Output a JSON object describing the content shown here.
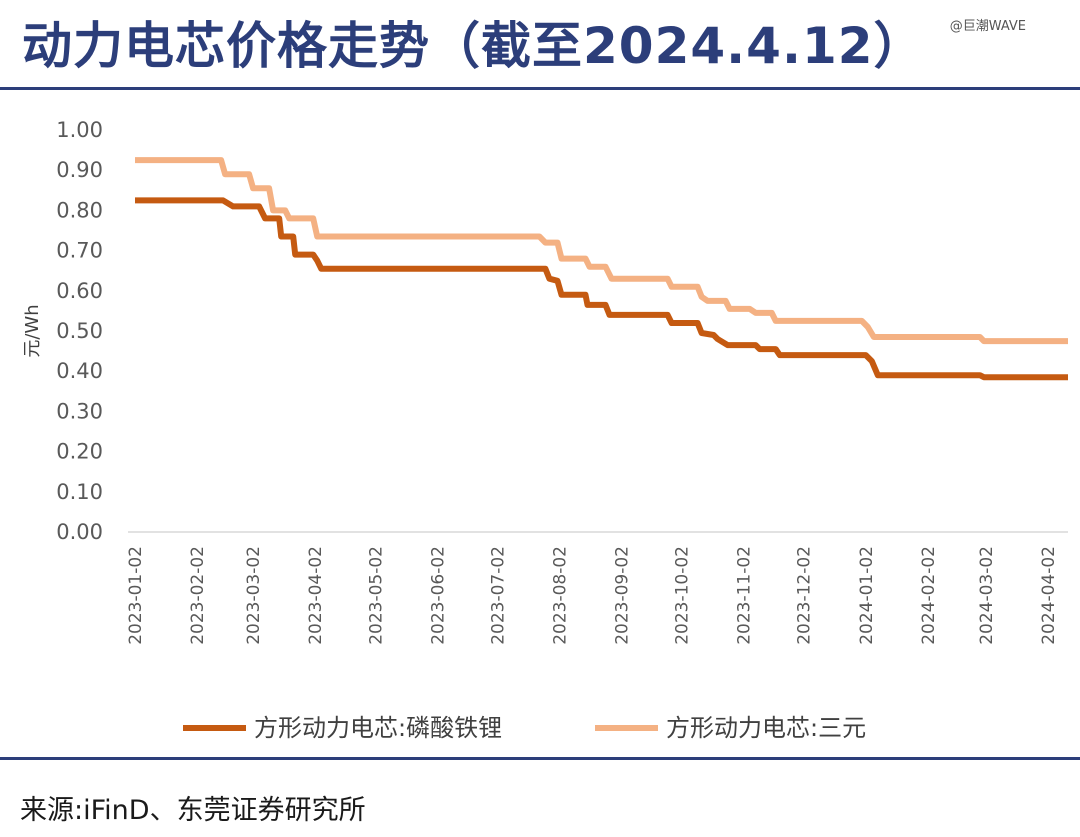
{
  "header": {
    "title": "动力电芯价格走势（截至2024.4.12）",
    "watermark": "@巨潮WAVE"
  },
  "footer": {
    "source": "来源:iFinD、东莞证券研究所"
  },
  "chart_data": {
    "type": "line",
    "ylabel": "元/Wh",
    "xlabel": "",
    "ylim": [
      0,
      1.0
    ],
    "yticks": [
      "0.00",
      "0.10",
      "0.20",
      "0.30",
      "0.40",
      "0.50",
      "0.60",
      "0.70",
      "0.80",
      "0.90",
      "1.00"
    ],
    "x_start": "2023-01-02",
    "x_end": "2024-04-12",
    "xticks": [
      "2023-01-02",
      "2023-02-02",
      "2023-03-02",
      "2023-04-02",
      "2023-05-02",
      "2023-06-02",
      "2023-07-02",
      "2023-08-02",
      "2023-09-02",
      "2023-10-02",
      "2023-11-02",
      "2023-12-02",
      "2024-01-02",
      "2024-02-02",
      "2024-03-02",
      "2024-04-02"
    ],
    "grid": false,
    "legend_position": "bottom",
    "series": [
      {
        "name": "方形动力电芯:磷酸铁锂",
        "color": "#c55a11",
        "points": [
          [
            "2023-01-02",
            0.825
          ],
          [
            "2023-02-15",
            0.825
          ],
          [
            "2023-02-20",
            0.81
          ],
          [
            "2023-03-05",
            0.81
          ],
          [
            "2023-03-08",
            0.78
          ],
          [
            "2023-03-15",
            0.78
          ],
          [
            "2023-03-16",
            0.735
          ],
          [
            "2023-03-22",
            0.735
          ],
          [
            "2023-03-23",
            0.69
          ],
          [
            "2023-04-01",
            0.69
          ],
          [
            "2023-04-03",
            0.675
          ],
          [
            "2023-04-05",
            0.655
          ],
          [
            "2023-07-26",
            0.655
          ],
          [
            "2023-07-28",
            0.63
          ],
          [
            "2023-08-01",
            0.625
          ],
          [
            "2023-08-03",
            0.59
          ],
          [
            "2023-08-15",
            0.59
          ],
          [
            "2023-08-16",
            0.565
          ],
          [
            "2023-08-25",
            0.565
          ],
          [
            "2023-08-27",
            0.54
          ],
          [
            "2023-09-25",
            0.54
          ],
          [
            "2023-09-27",
            0.52
          ],
          [
            "2023-10-10",
            0.52
          ],
          [
            "2023-10-12",
            0.495
          ],
          [
            "2023-10-18",
            0.49
          ],
          [
            "2023-10-20",
            0.48
          ],
          [
            "2023-10-25",
            0.465
          ],
          [
            "2023-11-08",
            0.465
          ],
          [
            "2023-11-10",
            0.455
          ],
          [
            "2023-11-18",
            0.455
          ],
          [
            "2023-11-20",
            0.44
          ],
          [
            "2024-01-02",
            0.44
          ],
          [
            "2024-01-05",
            0.425
          ],
          [
            "2024-01-08",
            0.39
          ],
          [
            "2024-02-28",
            0.39
          ],
          [
            "2024-03-01",
            0.385
          ],
          [
            "2024-04-12",
            0.385
          ]
        ]
      },
      {
        "name": "方形动力电芯:三元",
        "color": "#f4b183",
        "points": [
          [
            "2023-01-02",
            0.925
          ],
          [
            "2023-02-14",
            0.925
          ],
          [
            "2023-02-16",
            0.89
          ],
          [
            "2023-02-28",
            0.89
          ],
          [
            "2023-03-02",
            0.855
          ],
          [
            "2023-03-10",
            0.855
          ],
          [
            "2023-03-12",
            0.8
          ],
          [
            "2023-03-18",
            0.8
          ],
          [
            "2023-03-20",
            0.78
          ],
          [
            "2023-04-01",
            0.78
          ],
          [
            "2023-04-03",
            0.735
          ],
          [
            "2023-07-23",
            0.735
          ],
          [
            "2023-07-26",
            0.72
          ],
          [
            "2023-08-01",
            0.72
          ],
          [
            "2023-08-03",
            0.68
          ],
          [
            "2023-08-15",
            0.68
          ],
          [
            "2023-08-17",
            0.66
          ],
          [
            "2023-08-25",
            0.66
          ],
          [
            "2023-08-28",
            0.63
          ],
          [
            "2023-09-25",
            0.63
          ],
          [
            "2023-09-27",
            0.61
          ],
          [
            "2023-10-10",
            0.61
          ],
          [
            "2023-10-12",
            0.585
          ],
          [
            "2023-10-15",
            0.575
          ],
          [
            "2023-10-24",
            0.575
          ],
          [
            "2023-10-26",
            0.555
          ],
          [
            "2023-11-05",
            0.555
          ],
          [
            "2023-11-08",
            0.545
          ],
          [
            "2023-11-16",
            0.545
          ],
          [
            "2023-11-18",
            0.525
          ],
          [
            "2023-12-31",
            0.525
          ],
          [
            "2024-01-03",
            0.51
          ],
          [
            "2024-01-06",
            0.485
          ],
          [
            "2024-02-28",
            0.485
          ],
          [
            "2024-03-01",
            0.475
          ],
          [
            "2024-04-12",
            0.475
          ]
        ]
      }
    ]
  }
}
